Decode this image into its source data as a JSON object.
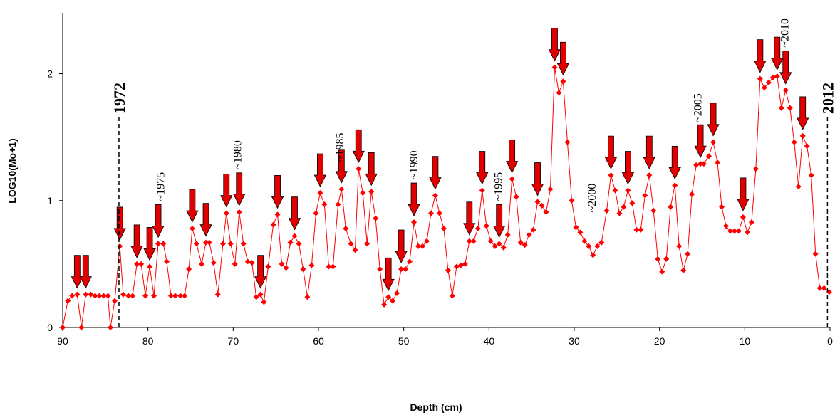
{
  "chart_data": {
    "type": "line",
    "x_label": "Depth (cm)",
    "y_label": "LOG10(Mo+1)",
    "x": [
      90.0,
      89.4,
      88.9,
      88.3,
      87.8,
      87.3,
      86.7,
      86.2,
      85.7,
      85.2,
      84.7,
      84.4,
      83.9,
      83.3,
      82.9,
      82.3,
      81.8,
      81.3,
      80.8,
      80.3,
      79.8,
      79.3,
      78.8,
      78.2,
      77.8,
      77.3,
      76.8,
      76.2,
      75.7,
      75.2,
      74.8,
      74.3,
      73.7,
      73.2,
      72.8,
      72.3,
      71.8,
      71.2,
      70.8,
      70.3,
      69.8,
      69.3,
      68.8,
      68.3,
      67.8,
      67.3,
      66.8,
      66.4,
      65.9,
      65.3,
      64.8,
      64.3,
      63.8,
      63.3,
      62.8,
      62.3,
      61.8,
      61.3,
      60.8,
      60.3,
      59.8,
      59.3,
      58.8,
      58.3,
      57.7,
      57.3,
      56.8,
      56.2,
      55.7,
      55.3,
      54.8,
      54.3,
      53.8,
      53.3,
      52.8,
      52.3,
      51.8,
      51.3,
      50.8,
      50.3,
      49.8,
      49.3,
      48.8,
      48.3,
      47.8,
      47.3,
      46.8,
      46.3,
      45.8,
      45.3,
      44.8,
      44.3,
      43.8,
      43.3,
      42.8,
      42.3,
      41.8,
      41.3,
      40.8,
      40.3,
      39.8,
      39.3,
      38.8,
      38.3,
      37.8,
      37.3,
      36.8,
      36.3,
      35.8,
      35.3,
      34.8,
      34.3,
      33.8,
      33.3,
      32.8,
      32.3,
      31.8,
      31.3,
      30.8,
      30.3,
      29.8,
      29.3,
      28.8,
      28.3,
      27.8,
      27.3,
      26.8,
      26.2,
      25.7,
      25.2,
      24.7,
      24.2,
      23.7,
      23.2,
      22.7,
      22.2,
      21.7,
      21.2,
      20.7,
      20.2,
      19.7,
      19.2,
      18.7,
      18.2,
      17.7,
      17.2,
      16.7,
      16.2,
      15.7,
      15.2,
      14.8,
      14.2,
      13.7,
      13.2,
      12.7,
      12.2,
      11.7,
      11.2,
      10.7,
      10.2,
      9.7,
      9.2,
      8.7,
      8.2,
      7.7,
      7.2,
      6.7,
      6.2,
      5.7,
      5.2,
      4.7,
      4.2,
      3.7,
      3.2,
      2.7,
      2.2,
      1.7,
      1.2,
      0.7,
      0.1
    ],
    "values": [
      0,
      0.21,
      0.25,
      0.26,
      0,
      0.26,
      0.26,
      0.25,
      0.25,
      0.25,
      0.25,
      0,
      0.21,
      0.64,
      0.26,
      0.25,
      0.25,
      0.5,
      0.5,
      0.25,
      0.48,
      0.25,
      0.66,
      0.66,
      0.52,
      0.25,
      0.25,
      0.25,
      0.25,
      0.46,
      0.78,
      0.66,
      0.5,
      0.67,
      0.67,
      0.51,
      0.26,
      0.66,
      0.9,
      0.66,
      0.5,
      0.91,
      0.66,
      0.52,
      0.51,
      0.24,
      0.26,
      0.2,
      0.48,
      0.81,
      0.89,
      0.5,
      0.47,
      0.67,
      0.72,
      0.66,
      0.46,
      0.24,
      0.49,
      0.9,
      1.06,
      0.97,
      0.48,
      0.48,
      0.97,
      1.09,
      0.78,
      0.66,
      0.61,
      1.25,
      1.06,
      0.66,
      1.07,
      0.86,
      0.46,
      0.18,
      0.24,
      0.21,
      0.27,
      0.46,
      0.46,
      0.52,
      0.83,
      0.64,
      0.64,
      0.68,
      0.9,
      1.04,
      0.9,
      0.78,
      0.45,
      0.25,
      0.48,
      0.49,
      0.5,
      0.68,
      0.68,
      0.78,
      1.08,
      0.8,
      0.68,
      0.64,
      0.66,
      0.63,
      0.73,
      1.17,
      1.03,
      0.67,
      0.65,
      0.73,
      0.77,
      0.99,
      0.96,
      0.91,
      1.09,
      2.05,
      1.85,
      1.94,
      1.46,
      1.0,
      0.79,
      0.75,
      0.68,
      0.64,
      0.57,
      0.64,
      0.67,
      0.92,
      1.2,
      1.08,
      0.9,
      0.95,
      1.08,
      0.98,
      0.77,
      0.77,
      1.04,
      1.2,
      0.92,
      0.54,
      0.44,
      0.54,
      0.95,
      1.12,
      0.64,
      0.45,
      0.58,
      1.05,
      1.28,
      1.29,
      1.29,
      1.35,
      1.46,
      1.3,
      0.95,
      0.8,
      0.76,
      0.76,
      0.76,
      0.87,
      0.75,
      0.83,
      1.25,
      1.96,
      1.89,
      1.93,
      1.97,
      1.98,
      1.73,
      1.87,
      1.73,
      1.46,
      1.11,
      1.51,
      1.43,
      1.2,
      0.58,
      0.31,
      0.31,
      0.28
    ],
    "color": "#ff0000",
    "xlim": [
      90,
      0
    ],
    "xticks": [
      90,
      80,
      70,
      60,
      50,
      40,
      30,
      20,
      10,
      0
    ],
    "ylim": [
      0,
      2.48
    ],
    "yticks": [
      0,
      1,
      2
    ],
    "reference_lines": [
      {
        "x": 83.4,
        "label": "1972"
      },
      {
        "x": 0.3,
        "label": "2012"
      }
    ],
    "annotations": [
      {
        "x": 78.5,
        "text": "~1975"
      },
      {
        "x": 69.5,
        "text": "~1980"
      },
      {
        "x": 57.5,
        "text": "~1985"
      },
      {
        "x": 48.8,
        "text": "~1990"
      },
      {
        "x": 38.9,
        "text": "~1995"
      },
      {
        "x": 27.9,
        "text": "~2000"
      },
      {
        "x": 15.5,
        "text": "~2005"
      },
      {
        "x": 5.3,
        "text": "~2010"
      }
    ]
  }
}
